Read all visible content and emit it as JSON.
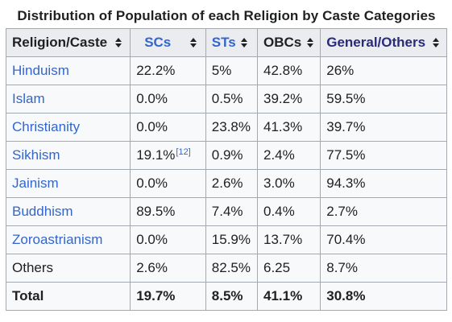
{
  "caption": "Distribution of Population of each Religion by Caste Categories",
  "headers": [
    "Religion/Caste",
    "SCs",
    "STs",
    "OBCs",
    "General/Others"
  ],
  "header_colors": [
    "#202122",
    "#3366cc",
    "#3366cc",
    "#202122",
    "#2a2a7a"
  ],
  "rows": [
    {
      "religion": "Hinduism",
      "sc": "22.2%",
      "st": "5%",
      "obc": "42.8%",
      "gen": "26%",
      "linked": true
    },
    {
      "religion": "Islam",
      "sc": "0.0%",
      "st": "0.5%",
      "obc": "39.2%",
      "gen": "59.5%",
      "linked": true
    },
    {
      "religion": "Christianity",
      "sc": "0.0%",
      "st": "23.8%",
      "obc": "41.3%",
      "gen": "39.7%",
      "linked": true
    },
    {
      "religion": "Sikhism",
      "sc": "19.1%",
      "sc_ref": "[12]",
      "st": "0.9%",
      "obc": "2.4%",
      "gen": "77.5%",
      "linked": true
    },
    {
      "religion": "Jainism",
      "sc": "0.0%",
      "st": "2.6%",
      "obc": "3.0%",
      "gen": "94.3%",
      "linked": true
    },
    {
      "religion": "Buddhism",
      "sc": "89.5%",
      "st": "7.4%",
      "obc": "0.4%",
      "gen": "2.7%",
      "linked": true
    },
    {
      "religion": "Zoroastrianism",
      "sc": "0.0%",
      "st": "15.9%",
      "obc": "13.7%",
      "gen": "70.4%",
      "linked": true
    },
    {
      "religion": "Others",
      "sc": "2.6%",
      "st": "82.5%",
      "obc": "6.25",
      "gen": "8.7%",
      "linked": false
    }
  ],
  "total": {
    "label": "Total",
    "sc": "19.7%",
    "st": "8.5%",
    "obc": "41.1%",
    "gen": "30.8%"
  }
}
